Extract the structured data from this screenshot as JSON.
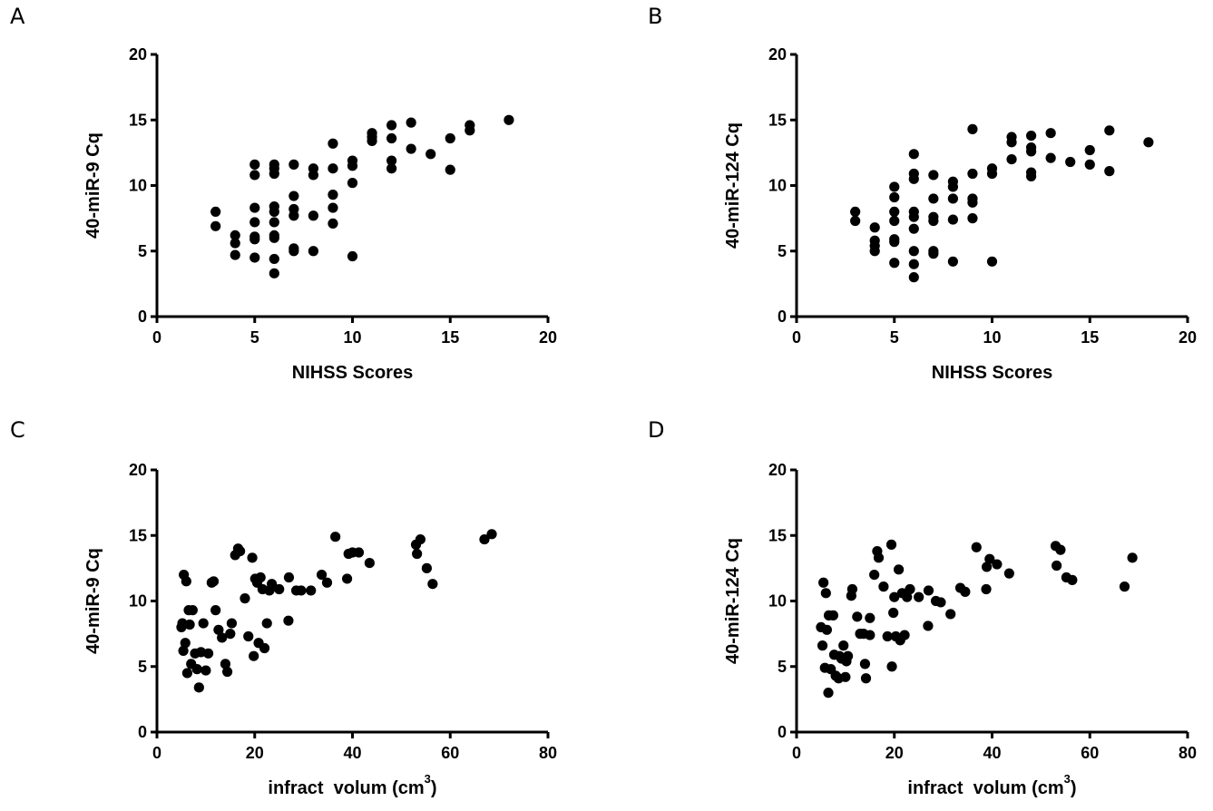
{
  "chart_data": [
    {
      "panel": "A",
      "type": "scatter",
      "xlabel": "NIHSS Scores",
      "ylabel": "40-miR-9 Cq",
      "xlim": [
        0,
        20
      ],
      "ylim": [
        0,
        20
      ],
      "xticks": [
        0,
        5,
        10,
        15,
        20
      ],
      "yticks": [
        0,
        5,
        10,
        15,
        20
      ],
      "points": [
        [
          3,
          8.0
        ],
        [
          3,
          6.9
        ],
        [
          4,
          6.2
        ],
        [
          4,
          5.6
        ],
        [
          4,
          4.7
        ],
        [
          5,
          11.6
        ],
        [
          5,
          10.8
        ],
        [
          5,
          8.3
        ],
        [
          5,
          7.2
        ],
        [
          5,
          6.1
        ],
        [
          5,
          5.9
        ],
        [
          5,
          4.5
        ],
        [
          6,
          11.6
        ],
        [
          6,
          11.3
        ],
        [
          6,
          10.9
        ],
        [
          6,
          8.4
        ],
        [
          6,
          8.0
        ],
        [
          6,
          7.2
        ],
        [
          6,
          6.2
        ],
        [
          6,
          6.0
        ],
        [
          6,
          4.4
        ],
        [
          6,
          3.3
        ],
        [
          7,
          11.6
        ],
        [
          7,
          9.2
        ],
        [
          7,
          8.2
        ],
        [
          7,
          7.7
        ],
        [
          7,
          5.2
        ],
        [
          7,
          5.0
        ],
        [
          8,
          11.3
        ],
        [
          8,
          10.8
        ],
        [
          8,
          7.7
        ],
        [
          8,
          5.0
        ],
        [
          9,
          13.2
        ],
        [
          9,
          11.3
        ],
        [
          9,
          9.3
        ],
        [
          9,
          8.3
        ],
        [
          9,
          7.1
        ],
        [
          10,
          11.9
        ],
        [
          10,
          11.5
        ],
        [
          10,
          10.2
        ],
        [
          10,
          4.6
        ],
        [
          11,
          14.0
        ],
        [
          11,
          13.7
        ],
        [
          11,
          13.4
        ],
        [
          12,
          14.6
        ],
        [
          12,
          13.6
        ],
        [
          12,
          11.9
        ],
        [
          12,
          11.3
        ],
        [
          13,
          14.8
        ],
        [
          13,
          12.8
        ],
        [
          14,
          12.4
        ],
        [
          15,
          13.6
        ],
        [
          15,
          11.2
        ],
        [
          16,
          14.6
        ],
        [
          16,
          14.2
        ],
        [
          18,
          15.0
        ]
      ]
    },
    {
      "panel": "B",
      "type": "scatter",
      "xlabel": "NIHSS Scores",
      "ylabel": "40-miR-124 Cq",
      "xlim": [
        0,
        20
      ],
      "ylim": [
        0,
        20
      ],
      "xticks": [
        0,
        5,
        10,
        15,
        20
      ],
      "yticks": [
        0,
        5,
        10,
        15,
        20
      ],
      "points": [
        [
          3,
          8.0
        ],
        [
          3,
          7.3
        ],
        [
          4,
          6.8
        ],
        [
          4,
          5.8
        ],
        [
          4,
          5.4
        ],
        [
          4,
          5.0
        ],
        [
          5,
          9.9
        ],
        [
          5,
          9.1
        ],
        [
          5,
          8.0
        ],
        [
          5,
          7.3
        ],
        [
          5,
          5.9
        ],
        [
          5,
          5.7
        ],
        [
          5,
          4.1
        ],
        [
          6,
          12.4
        ],
        [
          6,
          10.9
        ],
        [
          6,
          10.5
        ],
        [
          6,
          8.0
        ],
        [
          6,
          7.6
        ],
        [
          6,
          6.7
        ],
        [
          6,
          5.0
        ],
        [
          6,
          4.0
        ],
        [
          6,
          3.0
        ],
        [
          7,
          10.8
        ],
        [
          7,
          9.0
        ],
        [
          7,
          7.6
        ],
        [
          7,
          7.3
        ],
        [
          7,
          5.0
        ],
        [
          7,
          4.8
        ],
        [
          8,
          10.3
        ],
        [
          8,
          9.9
        ],
        [
          8,
          9.0
        ],
        [
          8,
          7.4
        ],
        [
          8,
          4.2
        ],
        [
          9,
          14.3
        ],
        [
          9,
          10.9
        ],
        [
          9,
          9.0
        ],
        [
          9,
          8.7
        ],
        [
          9,
          7.5
        ],
        [
          10,
          11.3
        ],
        [
          10,
          10.9
        ],
        [
          10,
          4.2
        ],
        [
          11,
          13.7
        ],
        [
          11,
          13.3
        ],
        [
          11,
          12.0
        ],
        [
          12,
          13.8
        ],
        [
          12,
          12.9
        ],
        [
          12,
          12.6
        ],
        [
          12,
          11.0
        ],
        [
          12,
          10.7
        ],
        [
          13,
          14.0
        ],
        [
          13,
          12.1
        ],
        [
          14,
          11.8
        ],
        [
          15,
          12.7
        ],
        [
          15,
          11.6
        ],
        [
          16,
          14.2
        ],
        [
          16,
          11.1
        ],
        [
          18,
          13.3
        ]
      ]
    },
    {
      "panel": "C",
      "type": "scatter",
      "xlabel": "infract  volum (cm",
      "xlabel_sup": "3",
      "xlabel_close": ")",
      "ylabel": "40-miR-9 Cq",
      "xlim": [
        0,
        80
      ],
      "ylim": [
        0,
        20
      ],
      "xticks": [
        0,
        20,
        40,
        60,
        80
      ],
      "yticks": [
        0,
        5,
        10,
        15,
        20
      ],
      "points": [
        [
          5.0,
          8.0
        ],
        [
          5.2,
          8.3
        ],
        [
          5.4,
          6.2
        ],
        [
          5.5,
          12.0
        ],
        [
          5.8,
          6.8
        ],
        [
          6.0,
          11.5
        ],
        [
          6.2,
          4.5
        ],
        [
          6.5,
          9.3
        ],
        [
          6.7,
          8.2
        ],
        [
          7.0,
          5.2
        ],
        [
          7.3,
          9.3
        ],
        [
          7.8,
          6.0
        ],
        [
          8.2,
          4.8
        ],
        [
          8.6,
          3.4
        ],
        [
          9.0,
          6.1
        ],
        [
          9.5,
          8.3
        ],
        [
          10.0,
          4.7
        ],
        [
          10.5,
          6.0
        ],
        [
          11.2,
          11.4
        ],
        [
          11.6,
          11.5
        ],
        [
          12.0,
          9.3
        ],
        [
          12.6,
          7.8
        ],
        [
          13.3,
          7.2
        ],
        [
          14.0,
          5.2
        ],
        [
          14.4,
          4.6
        ],
        [
          15.0,
          7.5
        ],
        [
          15.3,
          8.3
        ],
        [
          16.0,
          13.5
        ],
        [
          16.6,
          14.0
        ],
        [
          17.0,
          13.8
        ],
        [
          18.0,
          10.2
        ],
        [
          18.7,
          7.3
        ],
        [
          19.5,
          13.3
        ],
        [
          19.8,
          5.8
        ],
        [
          20.1,
          11.7
        ],
        [
          20.5,
          11.4
        ],
        [
          20.8,
          6.8
        ],
        [
          21.2,
          11.8
        ],
        [
          21.6,
          10.9
        ],
        [
          22.0,
          6.4
        ],
        [
          22.5,
          8.3
        ],
        [
          23.0,
          10.8
        ],
        [
          23.5,
          11.3
        ],
        [
          25.0,
          10.9
        ],
        [
          26.9,
          8.5
        ],
        [
          27.0,
          11.8
        ],
        [
          28.5,
          10.8
        ],
        [
          29.5,
          10.8
        ],
        [
          31.5,
          10.8
        ],
        [
          33.7,
          12.0
        ],
        [
          34.8,
          11.4
        ],
        [
          36.5,
          14.9
        ],
        [
          38.9,
          11.7
        ],
        [
          39.2,
          13.6
        ],
        [
          40.0,
          13.7
        ],
        [
          41.3,
          13.7
        ],
        [
          43.5,
          12.9
        ],
        [
          53.0,
          14.3
        ],
        [
          53.2,
          13.6
        ],
        [
          53.9,
          14.7
        ],
        [
          55.2,
          12.5
        ],
        [
          56.4,
          11.3
        ],
        [
          67.0,
          14.7
        ],
        [
          68.5,
          15.1
        ]
      ]
    },
    {
      "panel": "D",
      "type": "scatter",
      "xlabel": "infract  volum (cm",
      "xlabel_sup": "3",
      "xlabel_close": ")",
      "ylabel": "40-miR-124 Cq",
      "xlim": [
        0,
        80
      ],
      "ylim": [
        0,
        20
      ],
      "xticks": [
        0,
        20,
        40,
        60,
        80
      ],
      "yticks": [
        0,
        5,
        10,
        15,
        20
      ],
      "points": [
        [
          5.0,
          8.0
        ],
        [
          5.3,
          6.6
        ],
        [
          5.5,
          11.4
        ],
        [
          5.8,
          4.9
        ],
        [
          6.0,
          10.6
        ],
        [
          6.2,
          7.8
        ],
        [
          6.5,
          3.0
        ],
        [
          6.6,
          8.9
        ],
        [
          7.0,
          4.8
        ],
        [
          7.5,
          8.9
        ],
        [
          7.7,
          5.9
        ],
        [
          8.0,
          4.3
        ],
        [
          8.6,
          4.1
        ],
        [
          8.8,
          5.8
        ],
        [
          9.2,
          5.6
        ],
        [
          9.6,
          6.6
        ],
        [
          10.0,
          4.2
        ],
        [
          10.2,
          5.4
        ],
        [
          10.5,
          5.8
        ],
        [
          11.2,
          10.4
        ],
        [
          11.4,
          10.9
        ],
        [
          12.4,
          8.8
        ],
        [
          13.0,
          7.5
        ],
        [
          13.7,
          7.5
        ],
        [
          14.0,
          5.2
        ],
        [
          14.2,
          4.1
        ],
        [
          15.0,
          7.4
        ],
        [
          15.0,
          8.7
        ],
        [
          15.9,
          12.0
        ],
        [
          16.5,
          13.8
        ],
        [
          16.8,
          13.3
        ],
        [
          17.8,
          11.1
        ],
        [
          18.6,
          7.3
        ],
        [
          19.4,
          14.3
        ],
        [
          19.5,
          5.0
        ],
        [
          19.8,
          9.1
        ],
        [
          20.0,
          10.3
        ],
        [
          20.3,
          7.3
        ],
        [
          20.9,
          12.4
        ],
        [
          21.2,
          7.0
        ],
        [
          21.6,
          10.6
        ],
        [
          22.1,
          7.4
        ],
        [
          22.6,
          10.3
        ],
        [
          23.2,
          10.9
        ],
        [
          25.0,
          10.3
        ],
        [
          26.9,
          8.1
        ],
        [
          27.0,
          10.8
        ],
        [
          28.5,
          10.0
        ],
        [
          29.5,
          9.9
        ],
        [
          31.5,
          9.0
        ],
        [
          33.5,
          11.0
        ],
        [
          34.5,
          10.7
        ],
        [
          36.8,
          14.1
        ],
        [
          38.8,
          10.9
        ],
        [
          38.9,
          12.6
        ],
        [
          39.5,
          13.2
        ],
        [
          41.0,
          12.8
        ],
        [
          43.5,
          12.1
        ],
        [
          53.0,
          14.2
        ],
        [
          53.2,
          12.7
        ],
        [
          54.0,
          13.9
        ],
        [
          55.2,
          11.8
        ],
        [
          56.4,
          11.6
        ],
        [
          67.1,
          11.1
        ],
        [
          68.7,
          13.3
        ]
      ]
    }
  ]
}
